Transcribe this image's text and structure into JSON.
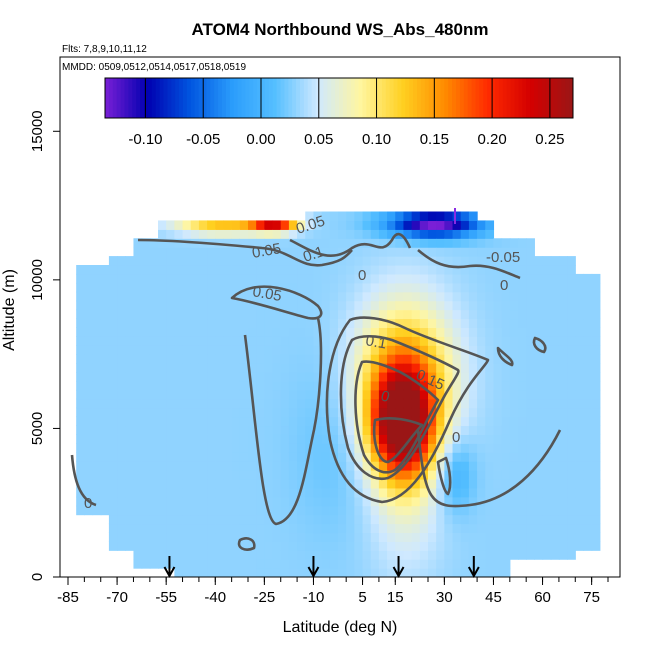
{
  "chart_data": {
    "type": "heatmap",
    "title": "ATOM4 Northbound WS_Abs_480nm",
    "subtitle_flights": "Flts: 7,8,9,10,11,12",
    "subtitle_dates": "MMDD: 0509,0512,0514,0517,0518,0519",
    "xlabel": "Latitude (deg N)",
    "ylabel": "Altitude (m)",
    "xlim": [
      -85,
      80
    ],
    "ylim": [
      0,
      17500
    ],
    "x_ticks": [
      "-85",
      "-70",
      "-55",
      "-40",
      "-25",
      "-10",
      "5",
      "15",
      "30",
      "45",
      "60",
      "75"
    ],
    "x_tick_values": [
      -85,
      -70,
      -55,
      -40,
      -25,
      -10,
      5,
      15,
      30,
      45,
      60,
      75
    ],
    "y_ticks": [
      "0",
      "5000",
      "10000",
      "15000"
    ],
    "y_tick_values": [
      0,
      5000,
      10000,
      15000
    ],
    "colorbar": {
      "range": [
        -0.135,
        0.27
      ],
      "ticks": [
        "-0.10",
        "-0.05",
        "0.00",
        "0.05",
        "0.10",
        "0.15",
        "0.20",
        "0.25"
      ],
      "tick_values": [
        -0.1,
        -0.05,
        0.0,
        0.05,
        0.1,
        0.15,
        0.2,
        0.25
      ],
      "colors": [
        "#7a1fd6",
        "#0000b0",
        "#0055e0",
        "#2b9dfc",
        "#55bfff",
        "#cfe9ff",
        "#fff6a0",
        "#ffd020",
        "#ff8a00",
        "#ff2a00",
        "#d40000",
        "#9a1616"
      ]
    },
    "contour_labels": [
      "0.05",
      "0.1",
      "0",
      "0.05",
      "0",
      "0.05",
      "0.1",
      "0.15",
      "0",
      "0",
      "-0.05",
      "0"
    ],
    "profile_arrow_latitudes": [
      -54,
      -10,
      16,
      39
    ],
    "plume_peak": {
      "latitude": 17,
      "altitude": 5000,
      "value": 0.25
    },
    "upper_feature": {
      "latitude": -23,
      "altitude": 11900,
      "value": 0.23
    }
  }
}
